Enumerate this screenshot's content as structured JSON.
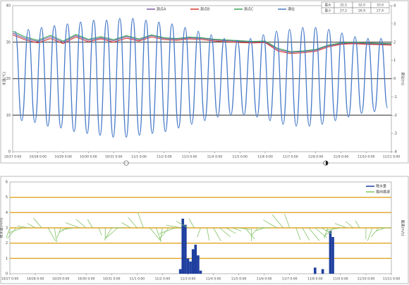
{
  "chart_data": [
    {
      "type": "line",
      "y_label": "水温(℃)",
      "y2_label": "潮位(m)",
      "xlim": [
        0,
        15
      ],
      "xticks": [
        {
          "value": 0,
          "label": "10/27 0:00"
        },
        {
          "value": 1,
          "label": "10/28 0:00"
        },
        {
          "value": 2,
          "label": "10/29 0:00"
        },
        {
          "value": 3,
          "label": "10/30 0:00"
        },
        {
          "value": 4,
          "label": "10/31 0:00"
        },
        {
          "value": 5,
          "label": "11/1 0:00"
        },
        {
          "value": 6,
          "label": "11/2 0:00"
        },
        {
          "value": 7,
          "label": "11/3 0:00"
        },
        {
          "value": 8,
          "label": "11/4 0:00"
        },
        {
          "value": 9,
          "label": "11/5 0:00"
        },
        {
          "value": 10,
          "label": "11/6 0:00"
        },
        {
          "value": 11,
          "label": "11/7 0:00"
        },
        {
          "value": 12,
          "label": "11/8 0:00"
        },
        {
          "value": 13,
          "label": "11/9 0:00"
        },
        {
          "value": 14,
          "label": "11/10 0:00"
        },
        {
          "value": 15,
          "label": "11/11 0:00"
        }
      ],
      "ylim": [
        0,
        40
      ],
      "yticks": [
        0,
        10,
        20,
        30,
        40
      ],
      "y2lim": [
        -4,
        4
      ],
      "y2ticks": [
        -4,
        -3,
        -2,
        -1,
        0,
        1,
        2,
        3,
        4
      ],
      "grid": true,
      "grid_color": "#555",
      "legend_position": "top",
      "x": [
        0,
        0.5,
        1,
        1.5,
        2,
        2.5,
        3,
        3.5,
        4,
        4.5,
        5,
        5.5,
        6,
        6.5,
        7,
        7.5,
        8,
        8.5,
        9,
        9.5,
        10,
        10.5,
        11,
        11.5,
        12,
        12.5,
        13,
        13.5,
        14,
        14.5,
        15
      ],
      "series": [
        {
          "name": "測点A",
          "color": "#7b5ea7",
          "values": [
            32.5,
            31.0,
            30.2,
            31.5,
            30.0,
            31.8,
            30.5,
            31.2,
            30.4,
            31.5,
            30.6,
            31.8,
            31.0,
            30.8,
            31.2,
            31.0,
            30.6,
            30.4,
            30.2,
            30.0,
            30.1,
            28.0,
            27.2,
            27.4,
            27.8,
            29.0,
            29.6,
            29.8,
            29.6,
            29.5,
            29.4
          ]
        },
        {
          "name": "測点B",
          "color": "#d9342b",
          "values": [
            32.0,
            30.6,
            29.8,
            31.0,
            29.6,
            31.4,
            30.1,
            30.9,
            30.0,
            31.1,
            30.3,
            31.4,
            30.7,
            30.5,
            30.9,
            30.7,
            30.3,
            30.1,
            29.9,
            29.8,
            29.9,
            27.6,
            26.9,
            27.1,
            27.5,
            28.7,
            29.4,
            29.6,
            29.4,
            29.3,
            29.2
          ]
        },
        {
          "name": "測点C",
          "color": "#3aa655",
          "values": [
            33.0,
            31.4,
            30.5,
            31.9,
            30.3,
            32.1,
            30.8,
            31.5,
            30.7,
            31.8,
            30.9,
            32.0,
            31.2,
            31.0,
            31.4,
            31.2,
            30.8,
            30.6,
            30.4,
            30.2,
            30.3,
            28.3,
            27.4,
            27.6,
            28.0,
            29.2,
            29.8,
            30.0,
            29.8,
            29.7,
            29.6
          ]
        },
        {
          "name": "潮位",
          "color": "#4a7cc9",
          "axis": "y2",
          "smooth": true,
          "x": [
            0.1,
            0.36,
            0.62,
            0.88,
            1.14,
            1.39,
            1.65,
            1.91,
            2.17,
            2.43,
            2.69,
            2.95,
            3.21,
            3.46,
            3.72,
            3.98,
            4.24,
            4.5,
            4.76,
            5.02,
            5.28,
            5.53,
            5.79,
            6.05,
            6.31,
            6.57,
            6.83,
            7.09,
            7.35,
            7.61,
            7.86,
            8.12,
            8.38,
            8.64,
            8.9,
            9.16,
            9.42,
            9.68,
            9.93,
            10.19,
            10.45,
            10.71,
            10.97,
            11.23,
            11.49,
            11.75,
            12.0,
            12.26,
            12.52,
            12.78,
            13.04,
            13.3,
            13.56,
            13.82,
            14.07,
            14.33,
            14.59,
            14.85
          ],
          "values": [
            2.6,
            -2.3,
            2.7,
            -2.4,
            2.8,
            -2.6,
            2.9,
            -2.7,
            3.0,
            -2.9,
            3.1,
            -3.0,
            3.2,
            -3.1,
            3.2,
            -3.2,
            3.3,
            -3.2,
            3.3,
            -3.1,
            3.2,
            -3.0,
            3.1,
            -2.9,
            3.0,
            -2.7,
            2.8,
            -2.5,
            2.6,
            -2.3,
            2.4,
            -2.1,
            2.2,
            -2.0,
            2.1,
            -2.0,
            2.2,
            -2.1,
            2.4,
            -2.3,
            2.6,
            -2.5,
            2.7,
            -2.6,
            2.8,
            -2.6,
            2.8,
            -2.5,
            2.7,
            -2.3,
            2.5,
            -2.1,
            2.3,
            -1.9,
            2.2,
            -1.8,
            2.2,
            -1.6
          ]
        }
      ],
      "annotations": [
        {
          "x": 4.5,
          "text": "○"
        },
        {
          "x": 12.4,
          "text": "◑"
        }
      ],
      "summary_table": {
        "rows": [
          [
            "最大",
            "32.5",
            "32.0",
            "33.0"
          ],
          [
            "最小",
            "27.2",
            "26.9",
            "27.4"
          ]
        ]
      }
    },
    {
      "type": "bar",
      "y_label": "降水量(mm)",
      "y2_label": "風速(m/s)",
      "xlim": [
        0,
        15
      ],
      "xticks": [
        {
          "value": 0,
          "label": "10/27 0:00"
        },
        {
          "value": 1,
          "label": "10/28 0:00"
        },
        {
          "value": 2,
          "label": "10/29 0:00"
        },
        {
          "value": 3,
          "label": "10/30 0:00"
        },
        {
          "value": 4,
          "label": "10/31 0:00"
        },
        {
          "value": 5,
          "label": "11/1 0:00"
        },
        {
          "value": 6,
          "label": "11/2 0:00"
        },
        {
          "value": 7,
          "label": "11/3 0:00"
        },
        {
          "value": 8,
          "label": "11/4 0:00"
        },
        {
          "value": 9,
          "label": "11/5 0:00"
        },
        {
          "value": 10,
          "label": "11/6 0:00"
        },
        {
          "value": 11,
          "label": "11/7 0:00"
        },
        {
          "value": 12,
          "label": "11/8 0:00"
        },
        {
          "value": 13,
          "label": "11/9 0:00"
        },
        {
          "value": 14,
          "label": "11/10 0:00"
        },
        {
          "value": 15,
          "label": "11/11 0:00"
        }
      ],
      "ylim": [
        0,
        6
      ],
      "yticks": [
        0,
        1,
        2,
        3,
        4,
        5,
        6
      ],
      "grid": true,
      "grid_color": "#e0a526",
      "legend_position": "upper right",
      "series": [
        {
          "name": "降水量",
          "color": "#1f3f9f",
          "x": [
            6.7,
            6.8,
            6.9,
            7.0,
            7.1,
            7.2,
            7.3,
            7.4,
            7.5,
            12.0,
            12.3,
            12.6,
            12.7
          ],
          "values": [
            0.3,
            3.6,
            3.2,
            1.0,
            0.8,
            1.6,
            1.9,
            1.2,
            0.2,
            0.4,
            0.3,
            2.8,
            2.4
          ]
        },
        {
          "name": "風向風速",
          "color": "#84c465",
          "type": "vector",
          "x": [
            0,
            0.25,
            0.5,
            0.75,
            1,
            1.25,
            1.5,
            1.75,
            2,
            2.25,
            2.5,
            2.75,
            3,
            3.25,
            3.5,
            3.75,
            4,
            4.25,
            4.5,
            4.75,
            5,
            5.25,
            5.5,
            5.75,
            6,
            6.25,
            6.5,
            6.75,
            7,
            7.25,
            7.5,
            7.75,
            8,
            8.25,
            8.5,
            8.75,
            9,
            9.25,
            9.5,
            9.75,
            10,
            10.25,
            10.5,
            10.75,
            11,
            11.25,
            11.5,
            11.75,
            12,
            12.25,
            12.5,
            12.75,
            13,
            13.25,
            13.5,
            13.75,
            14,
            14.25,
            14.5,
            14.75,
            15
          ],
          "values": [
            2.1,
            2.8,
            3.0,
            2.4,
            1.8,
            2.6,
            3.2,
            2.9,
            2.2,
            1.9,
            2.5,
            3.1,
            2.7,
            2.0,
            1.6,
            2.3,
            2.9,
            3.3,
            2.6,
            2.1,
            2.8,
            3.4,
            3.6,
            3.0,
            2.4,
            2.9,
            3.5,
            3.2,
            2.7,
            2.2,
            2.0,
            2.6,
            3.1,
            2.8,
            2.3,
            1.9,
            2.4,
            3.0,
            2.7,
            2.1,
            1.8,
            2.5,
            3.2,
            3.5,
            3.0,
            2.6,
            2.9,
            3.4,
            3.1,
            2.5,
            2.2,
            2.7,
            3.0,
            2.6,
            2.0,
            1.7,
            2.3,
            2.8,
            2.4,
            1.9,
            2.2
          ],
          "directions": [
            200,
            220,
            250,
            280,
            300,
            320,
            150,
            170,
            200,
            240,
            260,
            290,
            310,
            330,
            160,
            180,
            210,
            230,
            270,
            300,
            320,
            340,
            140,
            160,
            190,
            220,
            250,
            280,
            300,
            330,
            200,
            170,
            150,
            130,
            120,
            110,
            100,
            140,
            180,
            220,
            250,
            270,
            300,
            320,
            340,
            160,
            150,
            140,
            130,
            120,
            200,
            230,
            260,
            290,
            310,
            330,
            180,
            200,
            220,
            250,
            270
          ]
        }
      ]
    }
  ]
}
